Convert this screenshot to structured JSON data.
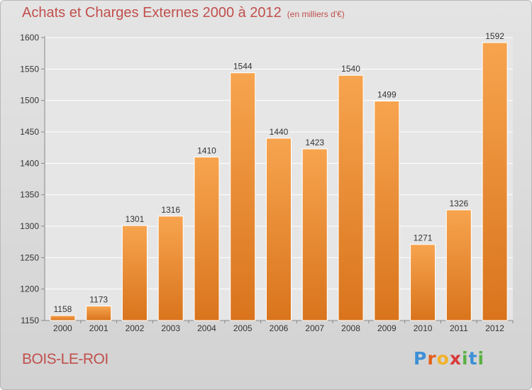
{
  "header": {
    "title": "Achats et Charges Externes 2000 à 2012",
    "unit": "(en milliers d'€)"
  },
  "footer": {
    "location": "BOIS-LE-ROI",
    "logo_text": "Proxiti"
  },
  "colors": {
    "title": "#c0504d",
    "bar_light": "#f7a44f",
    "bar_dark": "#d9741c",
    "background_top": "#e4e4e4",
    "background_bottom": "#d2d2d2"
  },
  "chart_data": {
    "type": "bar",
    "categories": [
      "2000",
      "2001",
      "2002",
      "2003",
      "2004",
      "2005",
      "2006",
      "2007",
      "2008",
      "2009",
      "2010",
      "2011",
      "2012"
    ],
    "values": [
      1158,
      1173,
      1301,
      1316,
      1410,
      1544,
      1440,
      1423,
      1540,
      1499,
      1271,
      1326,
      1592
    ],
    "title": "Achats et Charges Externes 2000 à 2012",
    "ylim": [
      1150,
      1600
    ],
    "yticks": [
      1150,
      1200,
      1250,
      1300,
      1350,
      1400,
      1450,
      1500,
      1550,
      1600
    ],
    "grid": true,
    "data_labels": true
  }
}
